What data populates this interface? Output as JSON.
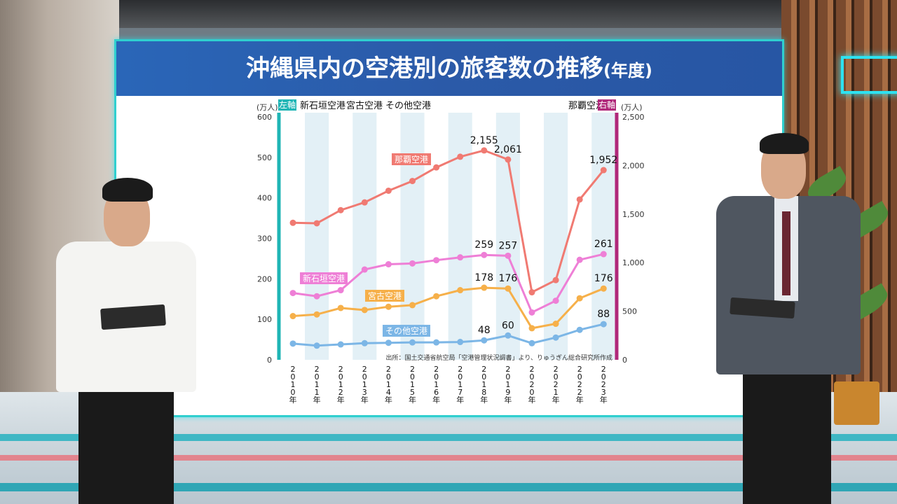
{
  "title": {
    "main": "沖縄県内の空港別の旅客数の推移",
    "sub": "(年度)"
  },
  "legend": {
    "left_unit": "(万人)",
    "left_tag": "左軸",
    "left_series": [
      "新石垣空港",
      "宮古空港",
      "その他空港"
    ],
    "right_series": "那覇空港",
    "right_tag": "右軸",
    "right_unit": "(万人)"
  },
  "source": "出所：国土交通省航空局「空港管理状況調書」より、りゅうぎん総合研究所作成",
  "colors": {
    "naha": "#f07a72",
    "ishigaki": "#ee7fd6",
    "miyako": "#f6b04a",
    "other": "#7cb6e6",
    "left_axis": "#1fb5b5",
    "right_axis": "#b0287a"
  },
  "chart_data": {
    "type": "line",
    "x": [
      "2010年",
      "2011年",
      "2012年",
      "2013年",
      "2014年",
      "2015年",
      "2016年",
      "2017年",
      "2018年",
      "2019年",
      "2020年",
      "2021年",
      "2022年",
      "2023年"
    ],
    "y_left": {
      "min": 0,
      "max": 600,
      "ticks": [
        0,
        100,
        200,
        300,
        400,
        500,
        600
      ],
      "unit": "(万人)"
    },
    "y_right": {
      "min": 0,
      "max": 2500,
      "ticks": [
        "0",
        "500",
        "1,000",
        "1,500",
        "2,000",
        "2,500"
      ],
      "unit": "(万人)"
    },
    "series": [
      {
        "name": "那覇空港",
        "axis": "right",
        "color": "#f07a72",
        "values": [
          1410,
          1405,
          1540,
          1620,
          1740,
          1840,
          1980,
          2090,
          2155,
          2061,
          695,
          820,
          1650,
          1952
        ],
        "labels": {
          "8": "2,155",
          "9": "2,061",
          "13": "1,952"
        }
      },
      {
        "name": "新石垣空港",
        "axis": "left",
        "color": "#ee7fd6",
        "values": [
          165,
          157,
          172,
          223,
          236,
          238,
          246,
          253,
          259,
          257,
          117,
          146,
          247,
          261
        ],
        "labels": {
          "8": "259",
          "9": "257",
          "13": "261"
        }
      },
      {
        "name": "宮古空港",
        "axis": "left",
        "color": "#f6b04a",
        "values": [
          108,
          112,
          128,
          123,
          131,
          135,
          157,
          172,
          178,
          176,
          78,
          89,
          152,
          176
        ],
        "labels": {
          "8": "178",
          "9": "176",
          "13": "176"
        }
      },
      {
        "name": "その他空港",
        "axis": "left",
        "color": "#7cb6e6",
        "values": [
          40,
          35,
          38,
          41,
          42,
          43,
          43,
          44,
          48,
          60,
          41,
          55,
          74,
          88
        ],
        "labels": {
          "8": "48",
          "9": "60",
          "13": "88"
        }
      }
    ]
  }
}
